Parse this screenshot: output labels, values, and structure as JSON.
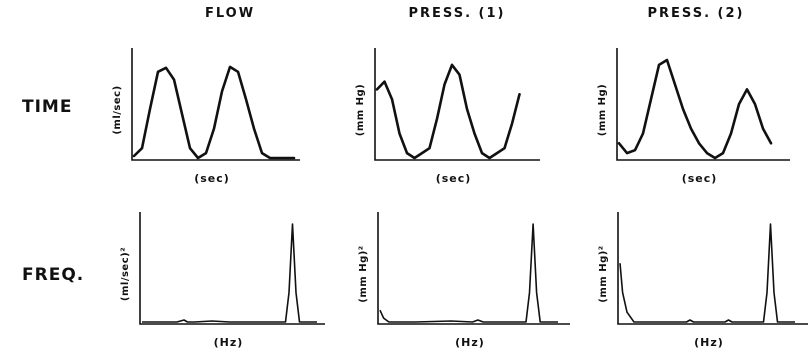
{
  "columns": [
    "FLOW",
    "PRESS. (1)",
    "PRESS. (2)"
  ],
  "rows": [
    "TIME",
    "FREQ."
  ],
  "chart_data": [
    {
      "type": "line",
      "row": "TIME",
      "column": "FLOW",
      "xlabel": "(sec)",
      "ylabel": "(ml/sec)",
      "x": [
        0,
        0.05,
        0.1,
        0.15,
        0.2,
        0.25,
        0.3,
        0.35,
        0.4,
        0.45,
        0.5,
        0.55,
        0.6,
        0.65,
        0.7,
        0.75,
        0.8,
        0.85,
        0.9,
        0.95,
        1.0
      ],
      "y": [
        0.02,
        0.1,
        0.5,
        0.88,
        0.92,
        0.8,
        0.45,
        0.1,
        0.0,
        0.05,
        0.3,
        0.68,
        0.93,
        0.88,
        0.6,
        0.3,
        0.05,
        0.0,
        0.0,
        0.0,
        0.0
      ]
    },
    {
      "type": "line",
      "row": "TIME",
      "column": "PRESS. (1)",
      "xlabel": "(sec)",
      "ylabel": "(mm Hg)",
      "x": [
        0,
        0.05,
        0.1,
        0.15,
        0.2,
        0.25,
        0.3,
        0.35,
        0.4,
        0.45,
        0.5,
        0.55,
        0.6,
        0.65,
        0.7,
        0.75,
        0.8,
        0.85,
        0.9,
        0.95
      ],
      "y": [
        0.7,
        0.78,
        0.6,
        0.25,
        0.05,
        0.0,
        0.05,
        0.1,
        0.4,
        0.75,
        0.95,
        0.85,
        0.5,
        0.25,
        0.05,
        0.0,
        0.05,
        0.1,
        0.35,
        0.65
      ]
    },
    {
      "type": "line",
      "row": "TIME",
      "column": "PRESS. (2)",
      "xlabel": "(sec)",
      "ylabel": "(mm Hg)",
      "x": [
        0,
        0.05,
        0.1,
        0.15,
        0.2,
        0.25,
        0.3,
        0.35,
        0.4,
        0.45,
        0.5,
        0.55,
        0.6,
        0.65,
        0.7,
        0.75,
        0.8,
        0.85,
        0.9,
        0.95
      ],
      "y": [
        0.15,
        0.05,
        0.08,
        0.25,
        0.6,
        0.95,
        1.0,
        0.75,
        0.5,
        0.3,
        0.15,
        0.05,
        0.0,
        0.05,
        0.25,
        0.55,
        0.7,
        0.55,
        0.3,
        0.15
      ]
    },
    {
      "type": "line",
      "row": "FREQ.",
      "column": "FLOW",
      "xlabel": "(Hz)",
      "ylabel": "(ml/sec)²",
      "x": [
        0,
        0.1,
        0.2,
        0.24,
        0.26,
        0.3,
        0.4,
        0.5,
        0.6,
        0.7,
        0.82,
        0.84,
        0.86,
        0.88,
        0.9,
        1.0
      ],
      "y": [
        0.0,
        0.0,
        0.0,
        0.02,
        0.0,
        0.0,
        0.01,
        0.0,
        0.0,
        0.0,
        0.0,
        0.3,
        1.0,
        0.3,
        0.0,
        0.0
      ]
    },
    {
      "type": "line",
      "row": "FREQ.",
      "column": "PRESS. (1)",
      "xlabel": "(Hz)",
      "ylabel": "(mm Hg)²",
      "x": [
        0,
        0.02,
        0.05,
        0.2,
        0.4,
        0.52,
        0.55,
        0.58,
        0.7,
        0.82,
        0.84,
        0.86,
        0.88,
        0.9,
        1.0
      ],
      "y": [
        0.12,
        0.04,
        0.0,
        0.0,
        0.01,
        0.0,
        0.02,
        0.0,
        0.0,
        0.0,
        0.3,
        1.0,
        0.3,
        0.0,
        0.0
      ]
    },
    {
      "type": "line",
      "row": "FREQ.",
      "column": "PRESS. (2)",
      "xlabel": "(Hz)",
      "ylabel": "(mm Hg)²",
      "x": [
        0,
        0.015,
        0.04,
        0.08,
        0.2,
        0.38,
        0.4,
        0.42,
        0.6,
        0.62,
        0.64,
        0.78,
        0.82,
        0.84,
        0.86,
        0.88,
        0.9,
        1.0
      ],
      "y": [
        0.6,
        0.3,
        0.1,
        0.0,
        0.0,
        0.0,
        0.02,
        0.0,
        0.0,
        0.02,
        0.0,
        0.0,
        0.0,
        0.3,
        1.0,
        0.3,
        0.0,
        0.0
      ]
    }
  ]
}
